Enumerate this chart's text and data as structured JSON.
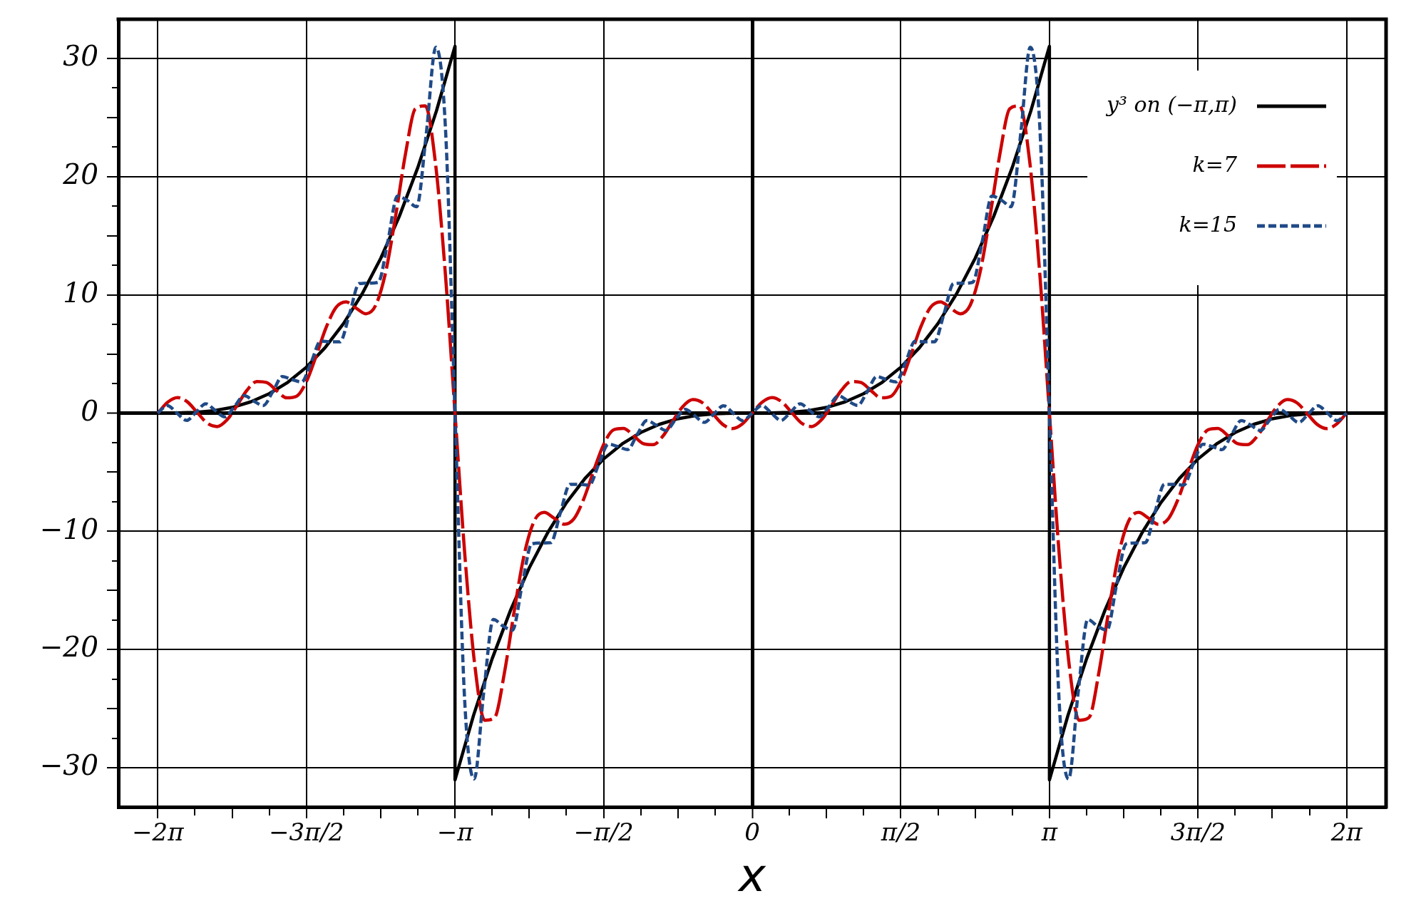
{
  "chart_data": {
    "type": "line",
    "xlabel": "x",
    "xlim": [
      -6.7,
      6.7
    ],
    "ylim": [
      -33.3,
      33.3
    ],
    "xticks": [
      {
        "value": -6.2832,
        "label": "−2π"
      },
      {
        "value": -5.8905,
        "label": null
      },
      {
        "value": -5.4978,
        "label": null
      },
      {
        "value": -5.1051,
        "label": null
      },
      {
        "value": -4.7124,
        "label": "−3π/2"
      },
      {
        "value": -4.3197,
        "label": null
      },
      {
        "value": -3.927,
        "label": null
      },
      {
        "value": -3.5343,
        "label": null
      },
      {
        "value": -3.1416,
        "label": "−π"
      },
      {
        "value": -2.7489,
        "label": null
      },
      {
        "value": -2.3562,
        "label": null
      },
      {
        "value": -1.9635,
        "label": null
      },
      {
        "value": -1.5708,
        "label": "−π/2"
      },
      {
        "value": -1.1781,
        "label": null
      },
      {
        "value": -0.7854,
        "label": null
      },
      {
        "value": -0.3927,
        "label": null
      },
      0,
      {
        "value": 0.3927,
        "label": null
      },
      {
        "value": 0.7854,
        "label": null
      },
      {
        "value": 1.1781,
        "label": null
      },
      {
        "value": 1.5708,
        "label": "π/2"
      },
      {
        "value": 1.9635,
        "label": null
      },
      {
        "value": 2.3562,
        "label": null
      },
      {
        "value": 2.7489,
        "label": null
      },
      {
        "value": 3.1416,
        "label": "π"
      },
      {
        "value": 3.5343,
        "label": null
      },
      {
        "value": 3.927,
        "label": null
      },
      {
        "value": 4.3197,
        "label": null
      },
      {
        "value": 4.7124,
        "label": "3π/2"
      },
      {
        "value": 5.1051,
        "label": null
      },
      {
        "value": 5.4978,
        "label": null
      },
      {
        "value": 5.8905,
        "label": null
      },
      {
        "value": 6.2832,
        "label": "2π"
      }
    ],
    "yticks": [
      {
        "value": -30,
        "label": "−30"
      },
      {
        "value": -27.5,
        "label": null
      },
      {
        "value": -25,
        "label": null
      },
      {
        "value": -22.5,
        "label": null
      },
      {
        "value": -20,
        "label": "−20"
      },
      {
        "value": -17.5,
        "label": null
      },
      {
        "value": -15,
        "label": null
      },
      {
        "value": -12.5,
        "label": null
      },
      {
        "value": -10,
        "label": "−10"
      },
      {
        "value": -7.5,
        "label": null
      },
      {
        "value": -5,
        "label": null
      },
      {
        "value": -2.5,
        "label": null
      },
      0,
      {
        "value": 2.5,
        "label": null
      },
      {
        "value": 5,
        "label": null
      },
      {
        "value": 7.5,
        "label": null
      },
      10,
      {
        "value": 12.5,
        "label": null
      },
      {
        "value": 15,
        "label": null
      },
      {
        "value": 17.5,
        "label": null
      },
      20,
      {
        "value": 22.5,
        "label": null
      },
      {
        "value": 25,
        "label": null
      },
      {
        "value": 27.5,
        "label": null
      },
      30
    ],
    "grid": true,
    "legend": "top right",
    "series": [
      {
        "name": "y³ on (−π,π)",
        "color": "#000000",
        "line_style": "solid",
        "x": [
          -6.2832,
          -6.0868,
          -5.8905,
          -5.6941,
          -5.4978,
          -5.3014,
          -5.1051,
          -4.9087,
          -4.7124,
          -4.516,
          -4.3197,
          -4.1233,
          -3.927,
          -3.7306,
          -3.5343,
          -3.3379,
          -3.1416,
          -3.1416,
          -2.9452,
          -2.7489,
          -2.5525,
          -2.3562,
          -2.1598,
          -1.9635,
          -1.7671,
          -1.5708,
          -1.3744,
          -1.1781,
          -0.9817,
          -0.7854,
          -0.589,
          -0.3927,
          -0.1963,
          0,
          0.1963,
          0.3927,
          0.589,
          0.7854,
          0.9817,
          1.1781,
          1.3744,
          1.5708,
          1.7671,
          1.9635,
          2.1598,
          2.3562,
          2.5525,
          2.7489,
          2.9452,
          3.1416,
          3.1416,
          3.3379,
          3.5343,
          3.7306,
          3.927,
          4.1233,
          4.3197,
          4.516,
          4.7124,
          4.9087,
          5.1051,
          5.3014,
          5.4978,
          5.6941,
          5.8905,
          6.0868,
          6.2832
        ],
        "values": [
          0,
          0.01,
          0.06,
          0.2,
          0.48,
          0.95,
          1.64,
          2.6,
          3.88,
          5.52,
          7.57,
          10.08,
          13.08,
          16.63,
          20.77,
          25.55,
          31.01,
          -31.01,
          -25.55,
          -20.77,
          -16.63,
          -13.08,
          -10.08,
          -7.57,
          -5.52,
          -3.88,
          -2.6,
          -1.64,
          -0.95,
          -0.48,
          -0.2,
          -0.06,
          -0.01,
          0,
          0.01,
          0.06,
          0.2,
          0.48,
          0.95,
          1.64,
          2.6,
          3.88,
          5.52,
          7.57,
          10.08,
          13.08,
          16.63,
          20.77,
          25.55,
          31.01,
          -31.01,
          -25.55,
          -20.77,
          -16.63,
          -13.08,
          -10.08,
          -7.57,
          -5.52,
          -3.88,
          -2.6,
          -1.64,
          -0.95,
          -0.48,
          -0.2,
          -0.06,
          -0.01,
          0
        ]
      },
      {
        "name": "k=7",
        "color": "#cc0000",
        "line_style": "dashed",
        "x": [
          -6.2832,
          -6.1785,
          -6.0737,
          -5.969,
          -5.8643,
          -5.7596,
          -5.6549,
          -5.5501,
          -5.4454,
          -5.3407,
          -5.236,
          -5.1313,
          -5.0265,
          -4.9218,
          -4.8171,
          -4.7124,
          -4.6077,
          -4.503,
          -4.3982,
          -4.2935,
          -4.1888,
          -4.0841,
          -3.9794,
          -3.8746,
          -3.7699,
          -3.6652,
          -3.5605,
          -3.4558,
          -3.351,
          -3.2463,
          -3.1416,
          -3.0369,
          -2.9322,
          -2.8274,
          -2.7227,
          -2.618,
          -2.5133,
          -2.4086,
          -2.3038,
          -2.1991,
          -2.0944,
          -1.9897,
          -1.885,
          -1.7802,
          -1.6755,
          -1.5708,
          -1.4661,
          -1.3614,
          -1.2566,
          -1.1519,
          -1.0472,
          -0.9425,
          -0.8378,
          -0.733,
          -0.6283,
          -0.5236,
          -0.4189,
          -0.3142,
          -0.2094,
          -0.1047,
          0,
          0.1047,
          0.2094,
          0.3142,
          0.4189,
          0.5236,
          0.6283,
          0.733,
          0.8378,
          0.9425,
          1.0472,
          1.1519,
          1.2566,
          1.3614,
          1.4661,
          1.5708,
          1.6755,
          1.7802,
          1.885,
          1.9897,
          2.0944,
          2.1991,
          2.3038,
          2.4086,
          2.5133,
          2.618,
          2.7227,
          2.8274,
          2.9322,
          3.0369,
          3.1416,
          3.2463,
          3.351,
          3.4558,
          3.5605,
          3.6652,
          3.7699,
          3.8746,
          3.9794,
          4.0841,
          4.1888,
          4.2935,
          4.3982,
          4.503,
          4.6077,
          4.7124,
          4.8171,
          4.9218,
          5.0265,
          5.1313,
          5.236,
          5.3407,
          5.4454,
          5.5501,
          5.6549,
          5.7596,
          5.8643,
          5.969,
          6.0737,
          6.1785,
          6.2832
        ],
        "values": [
          0,
          0.92,
          1.31,
          0.94,
          0.03,
          -0.86,
          -1.14,
          -0.56,
          0.65,
          1.93,
          2.67,
          2.58,
          1.89,
          1.29,
          1.42,
          2.66,
          4.87,
          7.25,
          8.94,
          9.4,
          8.88,
          8.4,
          9.12,
          11.91,
          16.62,
          21.9,
          25.74,
          25.97,
          21.33,
          12.07,
          0,
          -12.07,
          -21.33,
          -25.97,
          -25.74,
          -21.9,
          -16.62,
          -11.91,
          -9.12,
          -8.4,
          -8.88,
          -9.4,
          -8.94,
          -7.25,
          -4.87,
          -2.66,
          -1.42,
          -1.29,
          -1.89,
          -2.58,
          -2.67,
          -1.93,
          -0.65,
          0.56,
          1.14,
          0.86,
          -0.03,
          -0.94,
          -1.31,
          -0.92,
          0,
          0.92,
          1.31,
          0.94,
          0.03,
          -0.86,
          -1.14,
          -0.56,
          0.65,
          1.93,
          2.67,
          2.58,
          1.89,
          1.29,
          1.42,
          2.66,
          4.87,
          7.25,
          8.94,
          9.4,
          8.88,
          8.4,
          9.12,
          11.91,
          16.62,
          21.9,
          25.74,
          25.97,
          21.33,
          12.07,
          0,
          -12.07,
          -21.33,
          -25.97,
          -25.74,
          -21.9,
          -16.62,
          -11.91,
          -9.12,
          -8.4,
          -8.88,
          -9.4,
          -8.94,
          -7.25,
          -4.87,
          -2.66,
          -1.42,
          -1.29,
          -1.89,
          -2.58,
          -2.67,
          -1.93,
          -0.65,
          0.56,
          1.14,
          0.86,
          -0.03,
          -0.94,
          -1.31,
          -0.92,
          0
        ]
      },
      {
        "name": "k=15",
        "color": "#204a87",
        "line_style": "dotted",
        "x": [
          -6.2832,
          -6.1818,
          -6.0805,
          -5.9792,
          -5.8778,
          -5.7765,
          -5.6751,
          -5.5738,
          -5.4725,
          -5.3711,
          -5.2698,
          -5.1684,
          -5.0671,
          -4.9657,
          -4.8644,
          -4.7631,
          -4.6617,
          -4.5604,
          -4.459,
          -4.3577,
          -4.2564,
          -4.155,
          -4.0537,
          -3.9523,
          -3.851,
          -3.7496,
          -3.6483,
          -3.547,
          -3.4456,
          -3.3443,
          -3.2429,
          -3.1416,
          -3.0403,
          -2.9389,
          -2.8376,
          -2.7362,
          -2.6349,
          -2.5335,
          -2.4322,
          -2.3309,
          -2.2295,
          -2.1282,
          -2.0268,
          -1.9255,
          -1.8242,
          -1.7228,
          -1.6215,
          -1.5201,
          -1.4188,
          -1.3174,
          -1.2161,
          -1.1148,
          -1.0134,
          -0.9121,
          -0.8107,
          -0.7094,
          -0.6081,
          -0.5067,
          -0.4054,
          -0.304,
          -0.2027,
          -0.1013,
          0,
          0.1013,
          0.2027,
          0.304,
          0.4054,
          0.5067,
          0.6081,
          0.7094,
          0.8107,
          0.9121,
          1.0134,
          1.1148,
          1.2161,
          1.3174,
          1.4188,
          1.5201,
          1.6215,
          1.7228,
          1.8242,
          1.9255,
          2.0268,
          2.1282,
          2.2295,
          2.3309,
          2.4322,
          2.5335,
          2.6349,
          2.7362,
          2.8376,
          2.9389,
          3.0403,
          3.1416,
          3.2429,
          3.3443,
          3.4456,
          3.547,
          3.6483,
          3.7496,
          3.851,
          3.9523,
          4.0537,
          4.155,
          4.2564,
          4.3577,
          4.459,
          4.5604,
          4.6617,
          4.7631,
          4.8644,
          4.9657,
          5.0671,
          5.1684,
          5.2698,
          5.3711,
          5.4725,
          5.5738,
          5.6751,
          5.7765,
          5.8778,
          5.9792,
          6.0805,
          6.1818,
          6.2832
        ],
        "values": [
          0,
          0.64,
          0,
          -0.62,
          0.08,
          0.79,
          0.21,
          -0.32,
          0.55,
          1.47,
          1.02,
          0.64,
          1.82,
          3.09,
          2.83,
          2.63,
          4.3,
          6.09,
          6.02,
          6.02,
          8.39,
          10.95,
          10.98,
          11.06,
          14.54,
          18.35,
          18,
          17.45,
          23.59,
          30.94,
          24.15,
          0,
          -24.15,
          -30.94,
          -23.59,
          -17.45,
          -18,
          -18.35,
          -14.54,
          -11.06,
          -10.98,
          -10.95,
          -8.39,
          -6.02,
          -6.02,
          -6.09,
          -4.3,
          -2.63,
          -2.83,
          -3.09,
          -1.82,
          -0.64,
          -1.02,
          -1.47,
          -0.55,
          0.32,
          -0.21,
          -0.79,
          -0.08,
          0.62,
          0,
          -0.64,
          0,
          0.64,
          0,
          -0.62,
          0.08,
          0.79,
          0.21,
          -0.32,
          0.55,
          1.47,
          1.02,
          0.64,
          1.82,
          3.09,
          2.83,
          2.63,
          4.3,
          6.09,
          6.02,
          6.02,
          8.39,
          10.95,
          10.98,
          11.06,
          14.54,
          18.35,
          18,
          17.45,
          23.59,
          30.94,
          24.15,
          0,
          -24.15,
          -30.94,
          -23.59,
          -17.45,
          -18,
          -18.35,
          -14.54,
          -11.06,
          -10.98,
          -10.95,
          -8.39,
          -6.02,
          -6.02,
          -6.09,
          -4.3,
          -2.63,
          -2.83,
          -3.09,
          -1.82,
          -0.64,
          -1.02,
          -1.47,
          -0.55,
          0.32,
          -0.21,
          -0.79,
          -0.08,
          0.62,
          0,
          -0.64,
          0
        ]
      }
    ]
  }
}
